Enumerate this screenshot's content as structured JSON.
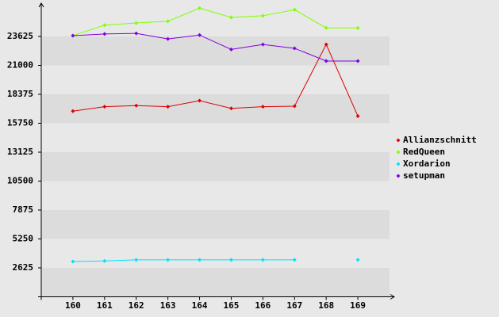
{
  "chart_data": {
    "type": "line",
    "categories": [
      "160",
      "161",
      "162",
      "163",
      "164",
      "165",
      "166",
      "167",
      "168",
      "169"
    ],
    "series": [
      {
        "name": "Allianzschnitt",
        "color": "#e00000",
        "values": [
          16850,
          17250,
          17350,
          17250,
          17800,
          17100,
          17250,
          17300,
          22900,
          16400
        ]
      },
      {
        "name": "RedQueen",
        "color": "#80ff00",
        "values": [
          23700,
          24650,
          24850,
          25000,
          26200,
          25350,
          25500,
          26050,
          24400,
          24400
        ]
      },
      {
        "name": "Xordarion",
        "color": "#00e0ff",
        "values": [
          3200,
          3250,
          3350,
          3350,
          3350,
          3350,
          3350,
          3350,
          null,
          3350
        ]
      },
      {
        "name": "setupman",
        "color": "#8000e0",
        "values": [
          23700,
          23850,
          23900,
          23400,
          23750,
          22450,
          22900,
          22550,
          21400,
          21400
        ]
      }
    ],
    "ylim": [
      0,
      26250
    ],
    "yticks": [
      2625,
      5250,
      7875,
      10500,
      13125,
      15750,
      18375,
      21000,
      23625
    ],
    "grid": "bands",
    "legend": "right"
  }
}
